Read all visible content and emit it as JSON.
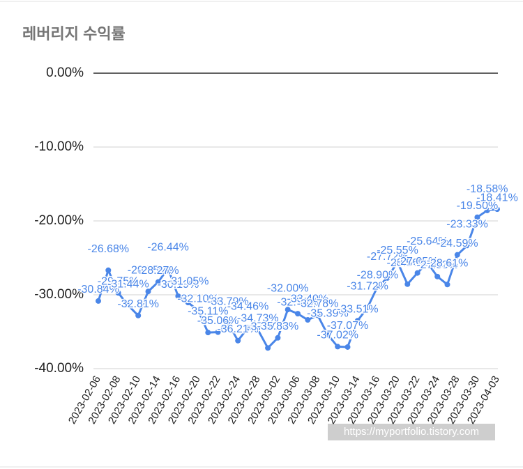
{
  "chart_data": {
    "type": "line",
    "title": "레버리지 수익률",
    "watermark": "https://myportfolio.tistory.com",
    "categories": [
      "2023-02-06",
      null,
      "2023-02-08",
      null,
      "2023-02-10",
      null,
      "2023-02-14",
      null,
      "2023-02-16",
      null,
      "2023-02-20",
      null,
      "2023-02-22",
      null,
      "2023-02-24",
      null,
      "2023-02-28",
      null,
      "2023-03-02",
      null,
      "2023-03-06",
      null,
      "2023-03-08",
      null,
      "2023-03-10",
      null,
      "2023-03-14",
      null,
      "2023-03-16",
      null,
      "2023-03-20",
      null,
      "2023-03-22",
      null,
      "2023-03-24",
      null,
      "2023-03-28",
      null,
      "2023-03-30",
      null,
      "2023-04-03"
    ],
    "series": [
      {
        "name": "레버리지",
        "color": "#4a86e8",
        "values": [
          -30.84,
          -26.68,
          -29.75,
          -31.44,
          -32.81,
          -29.55,
          -28.27,
          -26.44,
          -30.19,
          -31.05,
          -32.1,
          -35.11,
          -35.06,
          -33.79,
          -36.21,
          -34.46,
          -34.73,
          -37.2,
          -35.83,
          -32.0,
          -32.56,
          -33.4,
          -32.78,
          -35.39,
          -37.02,
          -37.07,
          -33.51,
          -31.72,
          -28.9,
          -27.72,
          -25.55,
          -28.56,
          -27.05,
          -25.64,
          -27.53,
          -28.61,
          -24.59,
          -23.33,
          -19.5,
          -18.58,
          -18.41
        ],
        "value_labels": [
          "-30.84%",
          "-26.68%",
          "-29.75%",
          "-31.44%",
          "-32.81%",
          "-29.55%",
          "-28.27%",
          "-26.44%",
          "-30.19%",
          "-31.05%",
          "-32.10%",
          "-35.11%",
          "-35.06%",
          "-33.79%",
          "-36.21%",
          "-34.46%",
          "-34.73%",
          "-37.20%",
          "-35.83%",
          "-32.00%",
          "-32.56%",
          "-33.40%",
          "-32.78%",
          "-35.39%",
          "-37.02%",
          "-37.07%",
          "-33.51%",
          "-31.72%",
          "-28.90%",
          "-27.72%",
          "-25.55%",
          "-28.56%",
          "-27.05%",
          "-25.64%",
          "-27.53%",
          "-28.61%",
          "-24.59%",
          "-23.33%",
          "-19.50%",
          "-18.58%",
          "-18.41%"
        ]
      }
    ],
    "ylim": [
      -40,
      0
    ],
    "yticks": [
      {
        "value": 0,
        "label": "0.00%"
      },
      {
        "value": -10,
        "label": "-10.00%"
      },
      {
        "value": -20,
        "label": "-20.00%"
      },
      {
        "value": -30,
        "label": "-30.00%"
      },
      {
        "value": -40,
        "label": "-40.00%"
      }
    ],
    "grid": true
  }
}
